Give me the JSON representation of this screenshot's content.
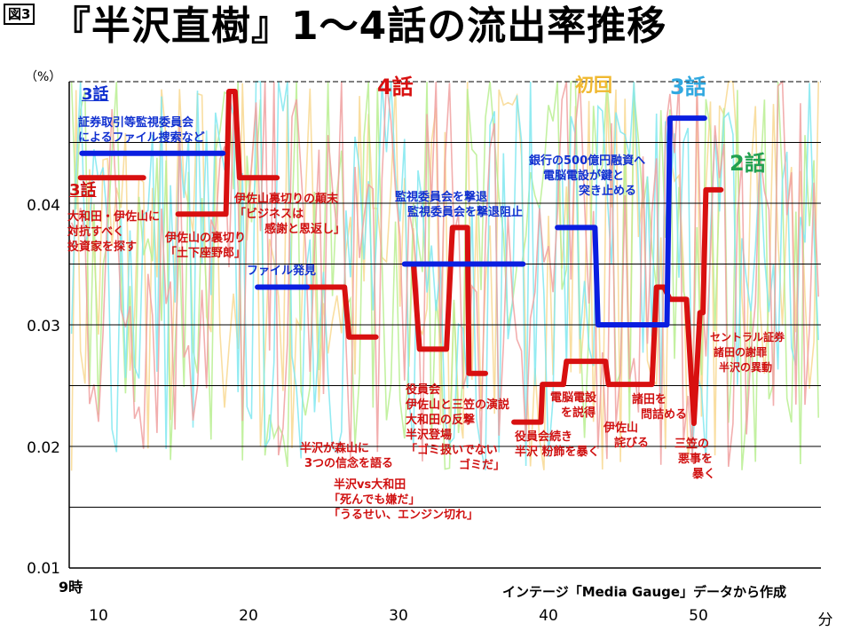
{
  "header": {
    "badge": "図3",
    "title": "『半沢直樹』1～4話の流出率推移"
  },
  "axis": {
    "unit": "（%）",
    "x_start_label": "9時",
    "x_unit": "分",
    "source": "インテージ「Media Gauge」データから作成"
  },
  "episode_labels": {
    "ep4": "4話",
    "ep1": "初回",
    "ep3": "3話",
    "ep2": "2話"
  },
  "annotations": {
    "ep3_blue_title": "3話",
    "ep3_blue": [
      "証券取引等監視委員会",
      "によるファイル捜索など"
    ],
    "ep3_red_title": "3話",
    "ep3_red": [
      "大和田・伊佐山に",
      "対抗すべく",
      "投資家を探す"
    ],
    "isayama_betrayal": [
      "伊佐山の裏切り",
      "「土下座野郎」"
    ],
    "isayama_end": [
      "伊佐山裏切りの顛末",
      "「ビジネスは",
      "感謝と恩返し」"
    ],
    "file_found": [
      "ファイル発見"
    ],
    "committee_repel": [
      "監視委員会を撃退",
      "監視委員会を撃退阻止"
    ],
    "bank_loan": [
      "銀行の500億円融資へ",
      "電脳電設が鍵と",
      "突き止める"
    ],
    "moriyama": [
      "半沢が森山に",
      "3つの信念を語る"
    ],
    "vs_owada": [
      "半沢vs大和田",
      "「死んでも嫌だ」",
      "「うるせい、エンジン切れ」"
    ],
    "board": [
      "役員会",
      "伊佐山と三笠の演説",
      "大和田の反撃",
      "半沢登場",
      "「ゴミ扱いでない",
      "ゴミだ」"
    ],
    "board_cont": [
      "役員会続き",
      "半沢 粉飾を暴く"
    ],
    "persuade": [
      "電脳電設",
      "を説得"
    ],
    "isayama_apology": [
      "伊佐山",
      "詫びる"
    ],
    "morota": [
      "諸田を",
      "問詰める"
    ],
    "mikasa": [
      "三笠の",
      "悪事を",
      "暴く"
    ],
    "central": [
      "セントラル証券",
      "諸田の謝罪",
      "半沢の異動"
    ]
  },
  "colors": {
    "ep4": "#d81010",
    "ep3_step": "#0a1ee0",
    "ep1": "#f0b830",
    "ep2": "#20a050",
    "ep3": "#30a8e0",
    "noise_ep1": "#f8d890",
    "noise_ep2": "#b8ee90",
    "noise_ep3": "#80e8f0",
    "noise_ep4": "#f0a0a0"
  },
  "chart_data": {
    "type": "line",
    "title": "『半沢直樹』1～4話の流出率推移",
    "xlabel": "分",
    "ylabel": "（%）",
    "xlim": [
      8,
      58
    ],
    "ylim": [
      0.01,
      0.05
    ],
    "yticks": [
      0.01,
      0.02,
      0.03,
      0.04
    ],
    "ytick_labels": [
      "0.01",
      "0.02",
      "0.03",
      "0.04"
    ],
    "xticks": [
      10,
      20,
      30,
      40,
      50
    ],
    "xtick_labels": [
      "10",
      "20",
      "30",
      "40",
      "50"
    ],
    "grid": true,
    "series": [
      {
        "name": "4話 (scene averages)",
        "color_key": "ep4",
        "segments": [
          [
            [
              8.8,
              0.0421
            ],
            [
              13.0,
              0.0421
            ]
          ],
          [
            [
              15.3,
              0.0391
            ],
            [
              18.5,
              0.0391
            ],
            [
              18.7,
              0.0492
            ],
            [
              19.1,
              0.0492
            ],
            [
              19.4,
              0.0421
            ],
            [
              21.9,
              0.0421
            ]
          ],
          [
            [
              23.9,
              0.0331
            ],
            [
              26.4,
              0.0331
            ],
            [
              26.7,
              0.029
            ],
            [
              28.5,
              0.029
            ]
          ],
          [
            [
              30.5,
              0.035
            ],
            [
              31.0,
              0.035
            ],
            [
              31.4,
              0.028
            ],
            [
              33.2,
              0.028
            ],
            [
              33.6,
              0.038
            ],
            [
              34.6,
              0.038
            ],
            [
              34.7,
              0.026
            ],
            [
              35.8,
              0.026
            ]
          ],
          [
            [
              37.7,
              0.022
            ],
            [
              39.5,
              0.022
            ],
            [
              39.6,
              0.0251
            ],
            [
              41.0,
              0.0251
            ],
            [
              41.2,
              0.027
            ],
            [
              43.8,
              0.027
            ],
            [
              44.0,
              0.0251
            ],
            [
              46.9,
              0.0251
            ],
            [
              47.2,
              0.0331
            ],
            [
              47.7,
              0.0331
            ],
            [
              48.1,
              0.0321
            ],
            [
              49.2,
              0.0321
            ],
            [
              49.7,
              0.0219
            ],
            [
              50.1,
              0.031
            ],
            [
              50.3,
              0.031
            ],
            [
              50.5,
              0.0411
            ],
            [
              51.5,
              0.0411
            ]
          ]
        ]
      },
      {
        "name": "3話 (scene averages)",
        "color_key": "ep3_step",
        "segments": [
          [
            [
              8.9,
              0.0441
            ],
            [
              18.3,
              0.0441
            ]
          ],
          [
            [
              20.6,
              0.0331
            ],
            [
              23.9,
              0.0331
            ]
          ],
          [
            [
              30.4,
              0.035
            ],
            [
              38.3,
              0.035
            ]
          ],
          [
            [
              40.6,
              0.038
            ],
            [
              43.1,
              0.038
            ],
            [
              43.3,
              0.03
            ],
            [
              47.9,
              0.03
            ],
            [
              48.1,
              0.047
            ],
            [
              50.4,
              0.047
            ]
          ]
        ]
      }
    ]
  }
}
